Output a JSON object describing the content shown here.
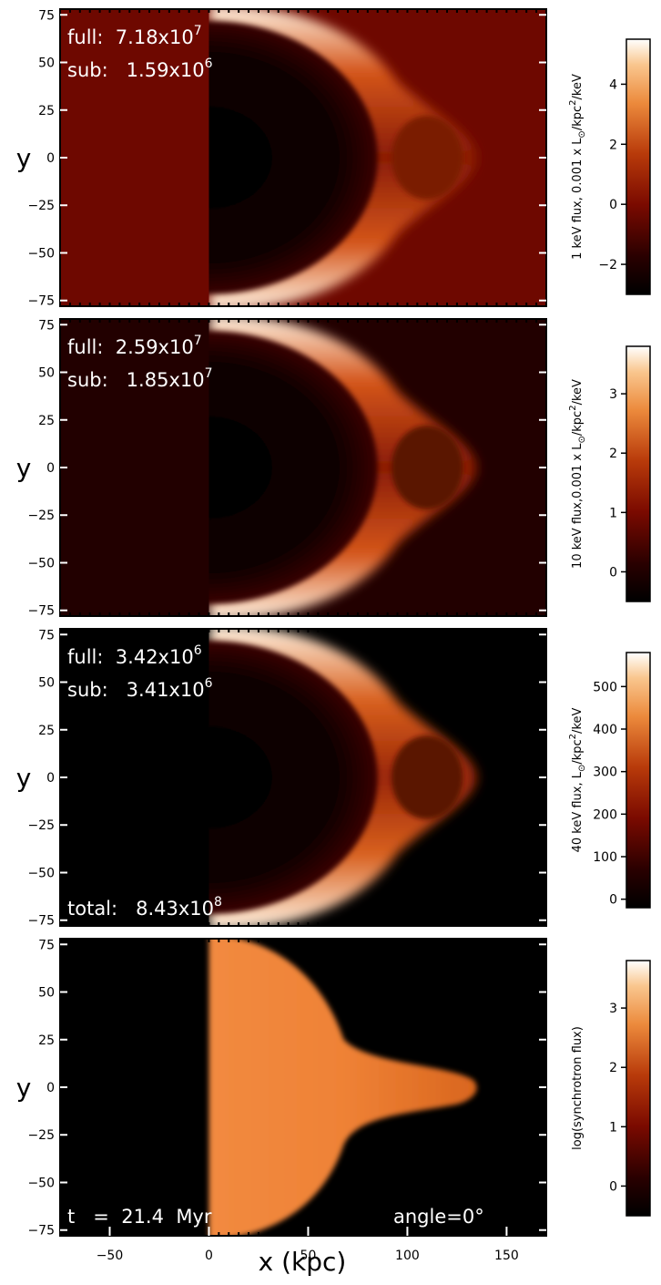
{
  "chart_data": [
    {
      "type": "heatmap",
      "xlim": [
        -75,
        170
      ],
      "ylim": [
        -78,
        78
      ],
      "ylabel": "y",
      "yticks": [
        -75,
        -50,
        -25,
        0,
        25,
        50,
        75
      ],
      "annotations": {
        "full_label": "full:",
        "full_value": "7.18x10",
        "full_exp": "7",
        "sub_label": "sub:",
        "sub_value": "1.59x10",
        "sub_exp": "6"
      },
      "colorbar": {
        "label_parts": [
          "1 keV flux, 0.001 x L",
          "⊙",
          "/kpc",
          "2",
          "/keV"
        ],
        "min": -3,
        "max": 5.5,
        "ticks": [
          -2,
          0,
          2,
          4
        ],
        "colormap": "heat"
      }
    },
    {
      "type": "heatmap",
      "xlim": [
        -75,
        170
      ],
      "ylim": [
        -78,
        78
      ],
      "ylabel": "y",
      "yticks": [
        -75,
        -50,
        -25,
        0,
        25,
        50,
        75
      ],
      "annotations": {
        "full_label": "full:",
        "full_value": "2.59x10",
        "full_exp": "7",
        "sub_label": "sub:",
        "sub_value": "1.85x10",
        "sub_exp": "7"
      },
      "colorbar": {
        "label_parts": [
          "10 keV flux,0.001 x L",
          "⊙",
          "/kpc",
          "2",
          "/keV"
        ],
        "min": -0.5,
        "max": 3.8,
        "ticks": [
          0,
          1,
          2,
          3
        ],
        "colormap": "heat"
      }
    },
    {
      "type": "heatmap",
      "xlim": [
        -75,
        170
      ],
      "ylim": [
        -78,
        78
      ],
      "ylabel": "y",
      "yticks": [
        -75,
        -50,
        -25,
        0,
        25,
        50,
        75
      ],
      "annotations": {
        "full_label": "full:",
        "full_value": "3.42x10",
        "full_exp": "6",
        "sub_label": "sub:",
        "sub_value": "3.41x10",
        "sub_exp": "6",
        "total_label": "total:",
        "total_value": "8.43x10",
        "total_exp": "8"
      },
      "colorbar": {
        "label_parts": [
          "40 keV flux, L",
          "⊙",
          "/kpc",
          "2",
          "/keV"
        ],
        "min": -20,
        "max": 580,
        "ticks": [
          0,
          100,
          200,
          300,
          400,
          500
        ],
        "colormap": "heat"
      }
    },
    {
      "type": "heatmap",
      "xlim": [
        -75,
        170
      ],
      "ylim": [
        -78,
        78
      ],
      "xlabel": "x (kpc)",
      "ylabel": "y",
      "xticks": [
        -50,
        0,
        50,
        100,
        150
      ],
      "yticks": [
        -75,
        -50,
        -25,
        0,
        25,
        50,
        75
      ],
      "annotations": {
        "time": "t   =  21.4  Myr",
        "angle": "angle=0°"
      },
      "colorbar": {
        "label_parts": [
          "log(synchrotron flux)"
        ],
        "min": -0.5,
        "max": 3.8,
        "ticks": [
          0,
          1,
          2,
          3
        ],
        "colormap": "heat"
      }
    }
  ]
}
